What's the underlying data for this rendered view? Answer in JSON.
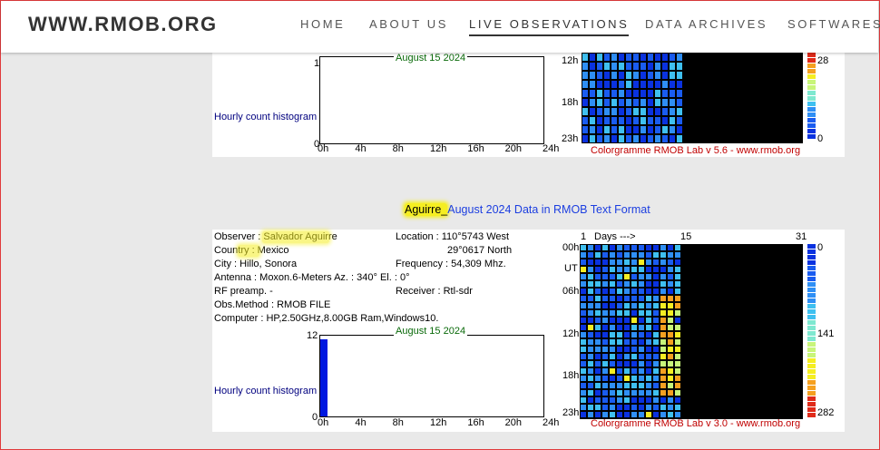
{
  "header": {
    "logo": "WWW.RMOB.ORG",
    "nav": [
      {
        "label": "HOME",
        "active": false
      },
      {
        "label": "ABOUT US",
        "active": false
      },
      {
        "label": "LIVE OBSERVATIONS",
        "active": true
      },
      {
        "label": "DATA ARCHIVES",
        "active": false
      },
      {
        "label": "SOFTWARES",
        "active": false
      }
    ]
  },
  "top_panel": {
    "histogram": {
      "label": "Hourly count histogram",
      "date": "August 15 2024",
      "y_max": "1",
      "y_min": "0",
      "x_ticks": [
        "0h",
        "4h",
        "8h",
        "12h",
        "16h",
        "20h",
        "24h"
      ]
    },
    "colorgramme": {
      "hour_labels": [
        "12h",
        "18h",
        "23h"
      ],
      "scale_max": "28",
      "scale_min": "0",
      "footer": "Colorgramme RMOB Lab v 5.6 - www.rmob.org",
      "data_days": 14
    }
  },
  "bottom_panel": {
    "title_name": "Aguirre_",
    "title_rest": "August 2024 Data in RMOB Text Format",
    "observer": "Observer   : Salvador Aguirre",
    "country": "Country   :   Mexico",
    "city": "City      :    Hillo, Sonora",
    "antenna": "Antenna  :  Moxon.6-Meters      Az. : 340°  El. : 0°",
    "rf_preamp": "RF preamp. -",
    "obs_method": "Obs.Method : RMOB FILE",
    "computer": "Computer : HP,2.50GHz,8.00GB Ram,Windows10.",
    "location": "Location   :  110°5743 West",
    "location2": "29°0617 North",
    "frequency": "Frequency : 54,309 Mhz.",
    "receiver": "Receiver :  Rtl-sdr",
    "histogram": {
      "label": "Hourly count histogram",
      "date": "August 15 2024",
      "y_max": "12",
      "y_min": "0",
      "first_bar_value": 12,
      "x_ticks": [
        "0h",
        "4h",
        "8h",
        "12h",
        "16h",
        "20h",
        "24h"
      ]
    },
    "colorgramme": {
      "days_header_start": "1",
      "days_header_arrow": "Days --->",
      "days_header_mid": "15",
      "days_header_end": "31",
      "hour_labels": [
        "00h",
        "UT",
        "06h",
        "12h",
        "18h",
        "23h"
      ],
      "scale_top": "0",
      "scale_mid": "141",
      "scale_bottom": "282",
      "footer": "Colorgramme RMOB Lab v 3.0 - www.rmob.org",
      "data_days": 14
    }
  },
  "colors": {
    "accent_link": "#1c3ee0",
    "highlight": "#f5ee22",
    "frame_border": "#e0393b"
  }
}
